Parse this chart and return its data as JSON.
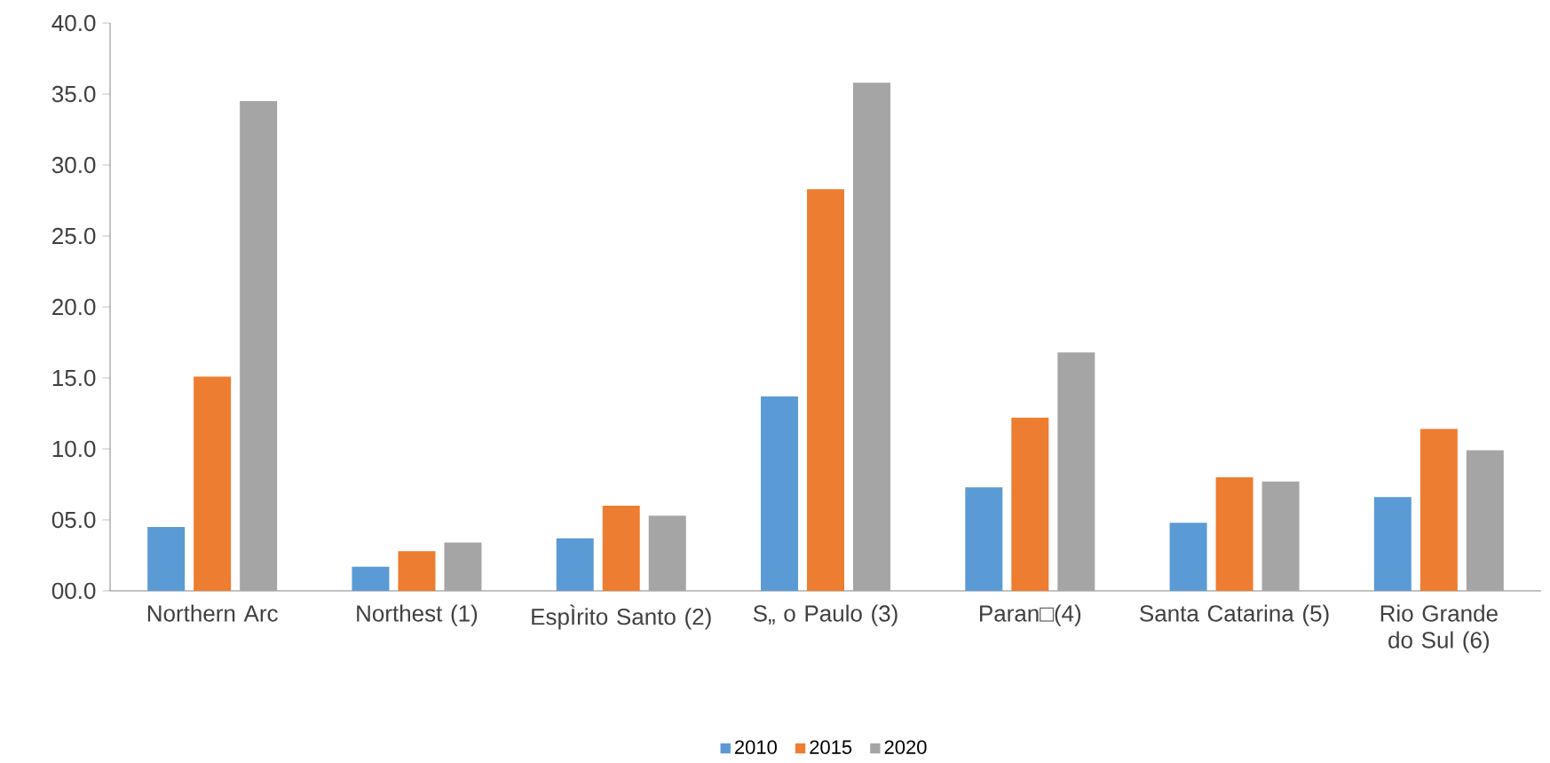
{
  "chart_data": {
    "type": "bar",
    "categories": [
      "Northern Arc",
      "Northest (1)",
      "EspÌrito Santo (2)",
      "S„ o Paulo (3)",
      "Paran□(4)",
      "Santa Catarina (5)",
      "Rio Grande do Sul (6)"
    ],
    "series": [
      {
        "name": "2010",
        "color": "#5b9bd5",
        "values": [
          4.5,
          1.7,
          3.7,
          13.7,
          7.3,
          4.8,
          6.6
        ]
      },
      {
        "name": "2015",
        "color": "#ed7d31",
        "values": [
          15.1,
          2.8,
          6.0,
          28.3,
          12.2,
          8.0,
          11.4
        ]
      },
      {
        "name": "2020",
        "color": "#a5a5a5",
        "values": [
          34.5,
          3.4,
          5.3,
          35.8,
          16.8,
          7.7,
          9.9
        ]
      }
    ],
    "ylim": [
      0,
      40
    ],
    "yticks": [
      {
        "value": 0,
        "label": "00.0"
      },
      {
        "value": 5,
        "label": "05.0"
      },
      {
        "value": 10,
        "label": "10.0"
      },
      {
        "value": 15,
        "label": "15.0"
      },
      {
        "value": 20,
        "label": "20.0"
      },
      {
        "value": 25,
        "label": "25.0"
      },
      {
        "value": 30,
        "label": "30.0"
      },
      {
        "value": 35,
        "label": "35.0"
      },
      {
        "value": 40,
        "label": "40.0"
      }
    ],
    "legend": "bottom"
  }
}
